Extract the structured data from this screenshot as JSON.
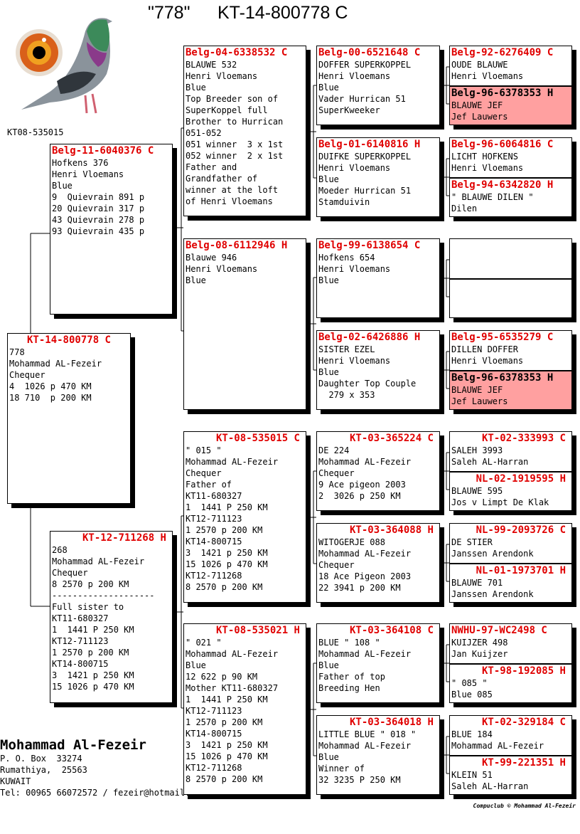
{
  "header": {
    "name": "\"778\"",
    "ring": "KT-14-800778 C"
  },
  "photo": {
    "caption": "KT08-535015",
    "icon": "pigeon-photo"
  },
  "colors": {
    "ring": "#e00000",
    "highlight": "#ffa0a0"
  },
  "cards": [
    {
      "ring": "KT-14-800778 C",
      "lines": [
        "778",
        "Mohammad AL-Fezeir",
        "Chequer",
        "4  1026 p 470 KM",
        "18 710  p 200 KM"
      ]
    },
    {
      "ring": "Belg-11-6040376 C",
      "lines": [
        "Hofkens 376",
        "Henri Vloemans",
        "Blue",
        "9  Quievrain 891 p",
        "20 Quievrain 317 p",
        "43 Quievrain 278 p",
        "93 Quievrain 435 p"
      ]
    },
    {
      "ring": "KT-12-711268 H",
      "lines": [
        "268",
        "Mohammad AL-Fezeir",
        "Chequer",
        "8 2570 p 200 KM",
        "--------------------",
        "Full sister to",
        "KT11-680327",
        "1  1441 P 250 KM",
        "KT12-711123",
        "1 2570 p 200 KM",
        "KT14-800715",
        "3  1421 p 250 KM",
        "15 1026 p 470 KM"
      ]
    },
    {
      "ring": "Belg-04-6338532 C",
      "lines": [
        "BLAUWE 532",
        "Henri Vloemans",
        "Blue",
        "Top Breeder son of",
        "SuperKoppel full",
        "Brother to Hurrican",
        "051-052",
        "051 winner  3 x 1st",
        "052 winner  2 x 1st",
        "Father and",
        "Grandfather of",
        "winner at the loft",
        "of Henri Vloemans"
      ]
    },
    {
      "ring": "Belg-08-6112946 H",
      "lines": [
        "Blauwe 946",
        "Henri Vloemans",
        "Blue"
      ]
    },
    {
      "ring": "KT-08-535015 C",
      "lines": [
        "\" 015 \"",
        "Mohammad AL-Fezeir",
        "Chequer",
        "Father of",
        "KT11-680327",
        "1  1441 P 250 KM",
        "KT12-711123",
        "1 2570 p 200 KM",
        "KT14-800715",
        "3  1421 p 250 KM",
        "15 1026 p 470 KM",
        "KT12-711268",
        "8 2570 p 200 KM"
      ]
    },
    {
      "ring": "KT-08-535021 H",
      "lines": [
        "\" 021 \"",
        "Mohammad AL-Fezeir",
        "Blue",
        "12 622 p 90 KM",
        "Mother KT11-680327",
        "1  1441 P 250 KM",
        "KT12-711123",
        "1 2570 p 200 KM",
        "KT14-800715",
        "3  1421 p 250 KM",
        "15 1026 p 470 KM",
        "KT12-711268",
        "8 2570 p 200 KM"
      ]
    },
    {
      "ring": "Belg-00-6521648 C",
      "lines": [
        "DOFFER SUPERKOPPEL",
        "Henri Vloemans",
        "Blue",
        "Vader Hurrican 51",
        "SuperKweeker"
      ]
    },
    {
      "ring": "Belg-01-6140816 H",
      "lines": [
        "DUIFKE SUPERKOPPEL",
        "Henri Vloemans",
        "Blue",
        "Moeder Hurrican 51",
        "Stamduivin"
      ]
    },
    {
      "ring": "Belg-99-6138654 C",
      "lines": [
        "Hofkens 654",
        "Henri Vloemans",
        "Blue"
      ]
    },
    {
      "ring": "Belg-02-6426886 H",
      "lines": [
        "SISTER EZEL",
        "Henri Vloemans",
        "Blue",
        "Daughter Top Couple",
        "  279 x 353"
      ]
    },
    {
      "ring": "KT-03-365224 C",
      "lines": [
        "DE 224",
        "Mohammad AL-Fezeir",
        "Chequer",
        "9 Ace pigeon 2003",
        "2  3026 p 250 KM"
      ]
    },
    {
      "ring": "KT-03-364088 H",
      "lines": [
        "WITOGERJE 088",
        "Mohammad AL-Fezeir",
        "Chequer",
        "18 Ace Pigeon 2003",
        "22 3941 p 200 KM"
      ]
    },
    {
      "ring": "KT-03-364108 C",
      "lines": [
        "BLUE \" 108 \"",
        "Mohammad AL-Fezeir",
        "Blue",
        "Father of top",
        "Breeding Hen"
      ]
    },
    {
      "ring": "KT-03-364018 H",
      "lines": [
        "LITTLE BLUE \" 018 \"",
        "Mohammad AL-Fezeir",
        "Blue",
        "Winner of",
        "32 3235 P 250 KM"
      ]
    },
    {
      "ring": "Belg-92-6276409 C",
      "lines": [
        "OUDE BLAUWE",
        "Henri Vloemans"
      ]
    },
    {
      "ring": "Belg-96-6378353 H",
      "lines": [
        "BLAUWE JEF",
        "Jef Lauwers"
      ],
      "highlight": true
    },
    {
      "ring": "Belg-96-6064816 C",
      "lines": [
        "LICHT HOFKENS",
        "Henri Vloemans"
      ]
    },
    {
      "ring": "Belg-94-6342820 H",
      "lines": [
        "\" BLAUWE DILEN \"",
        "Dilen"
      ]
    },
    {
      "ring": "",
      "lines": []
    },
    {
      "ring": "",
      "lines": []
    },
    {
      "ring": "Belg-95-6535279 C",
      "lines": [
        "DILLEN DOFFER",
        "Henri Vloemans"
      ]
    },
    {
      "ring": "Belg-96-6378353 H",
      "lines": [
        "BLAUWE JEF",
        "Jef Lauwers"
      ],
      "highlight": true
    },
    {
      "ring": "KT-02-333993 C",
      "lines": [
        "SALEH 3993",
        "Saleh AL-Harran"
      ]
    },
    {
      "ring": "NL-02-1919595 H",
      "lines": [
        "BLAUWE 595",
        "Jos v Limpt De Klak"
      ]
    },
    {
      "ring": "NL-99-2093726 C",
      "lines": [
        "DE STIER",
        "Janssen Arendonk"
      ]
    },
    {
      "ring": "NL-01-1973701 H",
      "lines": [
        "BLAUWE 701",
        "Janssen Arendonk"
      ]
    },
    {
      "ring": "NWHU-97-WC2498 C",
      "lines": [
        "KUIJZER 498",
        "Jan Kuijzer"
      ]
    },
    {
      "ring": "KT-98-192085 H",
      "lines": [
        "\" 085 \"",
        "Blue 085"
      ]
    },
    {
      "ring": "KT-02-329184 C",
      "lines": [
        "BLUE 184",
        "Mohammad AL-Fezeir"
      ]
    },
    {
      "ring": "KT-99-221351 H",
      "lines": [
        "KLEIN 51",
        "Saleh AL-Harran"
      ]
    }
  ],
  "footer": {
    "name": "Mohammad Al-Fezeir",
    "address": [
      "P. O. Box  33274",
      "Rumathiya,  25563",
      "KUWAIT",
      "Tel: 00965 66072572 / fezeir@hotmail."
    ],
    "copyright": "Compuclub © Mohammad Al-Fezeir"
  }
}
